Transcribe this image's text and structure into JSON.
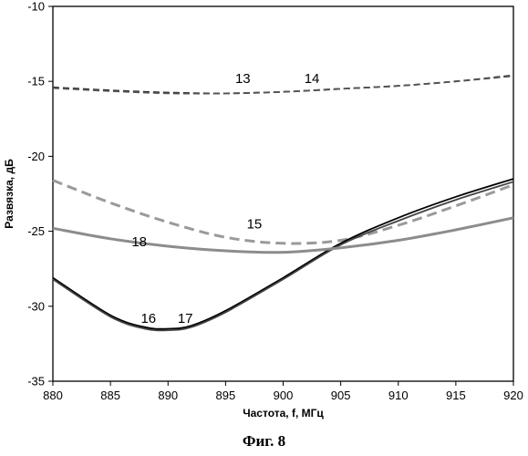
{
  "chart_data": {
    "type": "line",
    "title": "",
    "xlabel": "Частота, f, МГц",
    "ylabel": "Развязка, дБ",
    "xlim": [
      880,
      920
    ],
    "ylim": [
      -35,
      -10
    ],
    "xticks": [
      880,
      885,
      890,
      895,
      900,
      905,
      910,
      915,
      920
    ],
    "yticks": [
      -35,
      -30,
      -25,
      -20,
      -15,
      -10
    ],
    "grid": false,
    "series": [
      {
        "name": "13",
        "style": "dashed",
        "color": "#222222",
        "x": [
          880,
          885,
          890,
          895,
          900,
          905,
          910,
          915,
          920
        ],
        "y": [
          -15.4,
          -15.6,
          -15.75,
          -15.8,
          -15.7,
          -15.5,
          -15.3,
          -15.0,
          -14.6
        ]
      },
      {
        "name": "14",
        "style": "dashed",
        "color": "#555555",
        "x": [
          880,
          885,
          890,
          895,
          900,
          905,
          910,
          915,
          920
        ],
        "y": [
          -15.45,
          -15.65,
          -15.8,
          -15.8,
          -15.7,
          -15.5,
          -15.3,
          -15.0,
          -14.65
        ]
      },
      {
        "name": "15",
        "style": "dashed",
        "color": "#9a9a9a",
        "x": [
          880,
          885,
          890,
          895,
          900,
          905,
          910,
          915,
          920
        ],
        "y": [
          -21.6,
          -23.1,
          -24.4,
          -25.4,
          -25.8,
          -25.6,
          -24.6,
          -23.3,
          -21.9
        ]
      },
      {
        "name": "16",
        "style": "solid",
        "color": "#000000",
        "x": [
          880,
          885,
          888,
          890,
          892,
          895,
          900,
          905,
          910,
          915,
          920
        ],
        "y": [
          -28.1,
          -30.6,
          -31.4,
          -31.5,
          -31.3,
          -30.3,
          -28.1,
          -25.8,
          -24.1,
          -22.7,
          -21.5
        ]
      },
      {
        "name": "17",
        "style": "solid",
        "color": "#444444",
        "x": [
          880,
          885,
          888,
          890,
          892,
          895,
          900,
          905,
          910,
          915,
          920
        ],
        "y": [
          -28.2,
          -30.7,
          -31.5,
          -31.6,
          -31.4,
          -30.4,
          -28.2,
          -25.9,
          -24.3,
          -22.9,
          -21.7
        ]
      },
      {
        "name": "18",
        "style": "solid",
        "color": "#8c8c8c",
        "x": [
          880,
          885,
          890,
          895,
          900,
          905,
          910,
          915,
          920
        ],
        "y": [
          -24.8,
          -25.5,
          -26.0,
          -26.3,
          -26.4,
          -26.1,
          -25.6,
          -24.9,
          -24.1
        ]
      }
    ],
    "annotations": [
      {
        "text": "13",
        "x": 896.5,
        "y": -15.1
      },
      {
        "text": "14",
        "x": 902.5,
        "y": -15.1
      },
      {
        "text": "15",
        "x": 897.5,
        "y": -24.8
      },
      {
        "text": "18",
        "x": 887.5,
        "y": -26.0
      },
      {
        "text": "16",
        "x": 888.3,
        "y": -31.1
      },
      {
        "text": "17",
        "x": 891.5,
        "y": -31.1
      }
    ]
  },
  "caption": "Фиг. 8"
}
